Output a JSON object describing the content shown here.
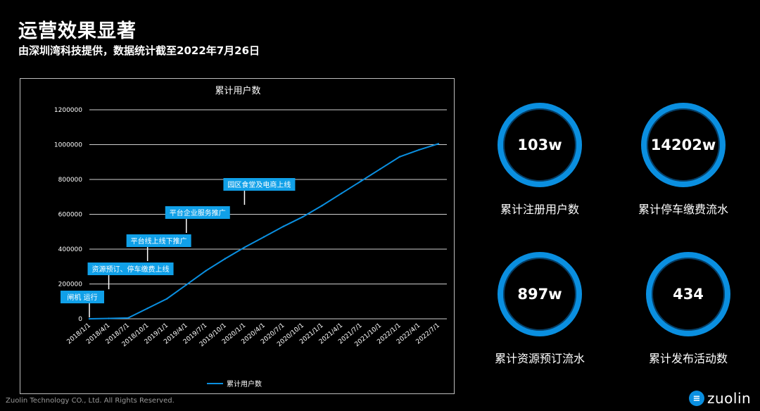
{
  "page": {
    "title": "运营效果显著",
    "subtitle": "由深圳湾科技提供，数据统计截至2022年7月26日"
  },
  "kpis": [
    {
      "value": "103w",
      "label": "累计注册用户数"
    },
    {
      "value": "14202w",
      "label": "累计停车缴费流水"
    },
    {
      "value": "897w",
      "label": "累计资源预订流水"
    },
    {
      "value": "434",
      "label": "累计发布活动数"
    }
  ],
  "footer": {
    "copyright": "Zuolin Technology CO., Ltd. All Rights Reserved.",
    "brand": "zuolin",
    "brand_icon_glyph": "≡"
  },
  "colors": {
    "accent": "#0a8fe0",
    "annotation": "#10a0e8",
    "grid": "#cfcfcf"
  },
  "chart_data": {
    "type": "line",
    "title": "累计用户数",
    "legend": "累计用户数",
    "legend_position": "bottom",
    "xlabel": "",
    "ylabel": "",
    "ylim": [
      0,
      1200000
    ],
    "yticks": [
      0,
      200000,
      400000,
      600000,
      800000,
      1000000,
      1200000
    ],
    "categories": [
      "2018/1/1",
      "2018/4/1",
      "2018/7/1",
      "2018/10/1",
      "2019/1/1",
      "2019/4/1",
      "2019/7/1",
      "2019/10/1",
      "2020/1/1",
      "2020/4/1",
      "2020/7/1",
      "2020/10/1",
      "2021/1/1",
      "2021/4/1",
      "2021/7/1",
      "2021/10/1",
      "2022/1/1",
      "2022/4/1",
      "2022/7/1"
    ],
    "series": [
      {
        "name": "累计用户数",
        "values": [
          0,
          2000,
          5000,
          60000,
          115000,
          195000,
          275000,
          345000,
          410000,
          470000,
          530000,
          585000,
          650000,
          720000,
          790000,
          860000,
          930000,
          970000,
          1005000
        ]
      }
    ],
    "annotations": [
      {
        "text": "闸机 运行",
        "category_index": 0
      },
      {
        "text": "资源预订、停车缴费上线",
        "category_index": 1
      },
      {
        "text": "平台线上线下推广",
        "category_index": 3
      },
      {
        "text": "平台企业服务推广",
        "category_index": 5
      },
      {
        "text": "园区食堂及电商上线",
        "category_index": 8
      }
    ]
  }
}
